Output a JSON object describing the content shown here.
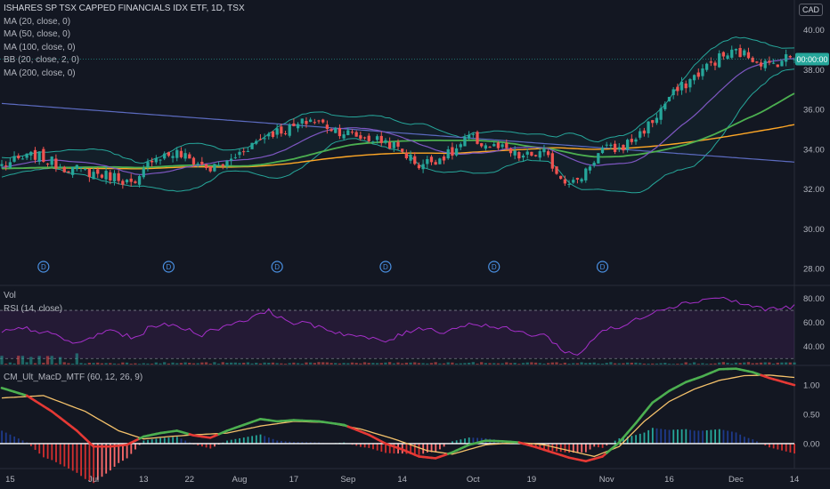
{
  "title": "ISHARES SP TSX CAPPED FINANCIALS IDX ETF, 1D, TSX",
  "currency": "CAD",
  "indicators": [
    "MA (20, close, 0)",
    "MA (50, close, 0)",
    "MA (100, close, 0)",
    "BB (20, close, 2, 0)",
    "MA (200, close, 0)"
  ],
  "vol_label": "Vol",
  "rsi_label": "RSI (14, close)",
  "macd_label": "CM_Ult_MacD_MTF (60, 12, 26, 9)",
  "last_price_label": "00:00:00",
  "dividend_marker": "D",
  "colors": {
    "background": "#131722",
    "up": "#26a69a",
    "down": "#ef5350",
    "ma20": "#7e57c2",
    "ma50": "#4caf50",
    "ma100": "#ffa726",
    "bb": "#26a69a",
    "ma200": "#5c6bc0",
    "rsi": "#a52fc9",
    "macd_up": "#4caf50",
    "macd_down": "#e53935",
    "signal": "#f5c26b"
  },
  "chart_data": [
    {
      "type": "candlestick",
      "x_tick_labels": [
        "15",
        "Jul",
        "13",
        "22",
        "Aug",
        "17",
        "Sep",
        "14",
        "Oct",
        "19",
        "Nov",
        "16",
        "Dec",
        "14"
      ],
      "y_ticks": [
        28,
        30,
        32,
        34,
        36,
        38,
        40
      ],
      "ylim": [
        27.2,
        41.5
      ],
      "close_path": [
        [
          0,
          33.2
        ],
        [
          8,
          33.7
        ],
        [
          15,
          33.1
        ],
        [
          22,
          32.8
        ],
        [
          28,
          32.6
        ],
        [
          32,
          32.1
        ],
        [
          36,
          33.6
        ],
        [
          42,
          33.8
        ],
        [
          50,
          33.0
        ],
        [
          54,
          33.3
        ],
        [
          58,
          34.0
        ],
        [
          64,
          34.8
        ],
        [
          70,
          35.1
        ],
        [
          74,
          35.5
        ],
        [
          80,
          35.0
        ],
        [
          86,
          34.6
        ],
        [
          92,
          34.4
        ],
        [
          96,
          33.9
        ],
        [
          100,
          33.2
        ],
        [
          108,
          33.8
        ],
        [
          112,
          34.6
        ],
        [
          116,
          34.2
        ],
        [
          120,
          34.0
        ],
        [
          124,
          33.6
        ],
        [
          130,
          33.8
        ],
        [
          134,
          32.6
        ],
        [
          138,
          32.3
        ],
        [
          140,
          33.0
        ],
        [
          144,
          34.0
        ],
        [
          148,
          34.0
        ],
        [
          152,
          34.6
        ],
        [
          156,
          35.4
        ],
        [
          160,
          36.6
        ],
        [
          164,
          37.3
        ],
        [
          168,
          38.0
        ],
        [
          172,
          38.6
        ],
        [
          176,
          38.9
        ],
        [
          180,
          38.6
        ],
        [
          184,
          38.2
        ],
        [
          188,
          38.6
        ],
        [
          190,
          38.7
        ]
      ],
      "dividend_days": [
        10,
        40,
        66,
        92,
        118,
        144
      ]
    },
    {
      "type": "line",
      "name": "RSI (14, close)",
      "y_ticks": [
        40,
        60,
        80
      ],
      "ylim": [
        25,
        90
      ],
      "bands": [
        30,
        70
      ],
      "values": [
        [
          0,
          52
        ],
        [
          6,
          55
        ],
        [
          12,
          50
        ],
        [
          18,
          42
        ],
        [
          22,
          48
        ],
        [
          26,
          54
        ],
        [
          32,
          46
        ],
        [
          36,
          58
        ],
        [
          42,
          57
        ],
        [
          48,
          50
        ],
        [
          54,
          58
        ],
        [
          58,
          62
        ],
        [
          62,
          66
        ],
        [
          64,
          72
        ],
        [
          66,
          64
        ],
        [
          70,
          60
        ],
        [
          76,
          57
        ],
        [
          80,
          52
        ],
        [
          86,
          48
        ],
        [
          92,
          44
        ],
        [
          96,
          50
        ],
        [
          100,
          56
        ],
        [
          106,
          52
        ],
        [
          110,
          57
        ],
        [
          114,
          59
        ],
        [
          118,
          56
        ],
        [
          122,
          54
        ],
        [
          126,
          50
        ],
        [
          130,
          50
        ],
        [
          134,
          38
        ],
        [
          138,
          32
        ],
        [
          140,
          40
        ],
        [
          144,
          54
        ],
        [
          148,
          55
        ],
        [
          152,
          62
        ],
        [
          156,
          69
        ],
        [
          160,
          73
        ],
        [
          164,
          76
        ],
        [
          168,
          79
        ],
        [
          172,
          81
        ],
        [
          176,
          77
        ],
        [
          180,
          73
        ],
        [
          184,
          71
        ],
        [
          188,
          72
        ],
        [
          190,
          73
        ]
      ]
    },
    {
      "type": "line",
      "name": "CM_Ult_MacD_MTF",
      "y_ticks": [
        0.0,
        0.5,
        1.0
      ],
      "ylim": [
        -0.35,
        1.32
      ],
      "macd": [
        [
          0,
          0.95
        ],
        [
          6,
          0.82
        ],
        [
          12,
          0.55
        ],
        [
          18,
          0.22
        ],
        [
          22,
          -0.05
        ],
        [
          26,
          -0.05
        ],
        [
          30,
          -0.02
        ],
        [
          34,
          0.12
        ],
        [
          38,
          0.18
        ],
        [
          42,
          0.22
        ],
        [
          46,
          0.14
        ],
        [
          50,
          0.1
        ],
        [
          54,
          0.22
        ],
        [
          58,
          0.32
        ],
        [
          62,
          0.42
        ],
        [
          66,
          0.38
        ],
        [
          70,
          0.4
        ],
        [
          76,
          0.38
        ],
        [
          82,
          0.32
        ],
        [
          88,
          0.15
        ],
        [
          92,
          0.0
        ],
        [
          96,
          -0.1
        ],
        [
          100,
          -0.22
        ],
        [
          104,
          -0.25
        ],
        [
          108,
          -0.15
        ],
        [
          112,
          -0.02
        ],
        [
          116,
          0.05
        ],
        [
          120,
          0.04
        ],
        [
          124,
          0.02
        ],
        [
          128,
          -0.06
        ],
        [
          132,
          -0.15
        ],
        [
          136,
          -0.24
        ],
        [
          140,
          -0.3
        ],
        [
          144,
          -0.22
        ],
        [
          148,
          0.02
        ],
        [
          152,
          0.35
        ],
        [
          156,
          0.7
        ],
        [
          160,
          0.9
        ],
        [
          164,
          1.05
        ],
        [
          168,
          1.15
        ],
        [
          172,
          1.27
        ],
        [
          176,
          1.28
        ],
        [
          180,
          1.22
        ],
        [
          184,
          1.12
        ],
        [
          188,
          1.04
        ],
        [
          190,
          1.0
        ]
      ],
      "signal": [
        [
          0,
          0.78
        ],
        [
          10,
          0.82
        ],
        [
          20,
          0.55
        ],
        [
          28,
          0.22
        ],
        [
          34,
          0.08
        ],
        [
          40,
          0.12
        ],
        [
          46,
          0.15
        ],
        [
          54,
          0.18
        ],
        [
          62,
          0.3
        ],
        [
          70,
          0.38
        ],
        [
          78,
          0.36
        ],
        [
          86,
          0.25
        ],
        [
          94,
          0.08
        ],
        [
          102,
          -0.12
        ],
        [
          108,
          -0.18
        ],
        [
          116,
          -0.02
        ],
        [
          124,
          0.02
        ],
        [
          130,
          -0.02
        ],
        [
          136,
          -0.12
        ],
        [
          142,
          -0.22
        ],
        [
          148,
          -0.05
        ],
        [
          154,
          0.38
        ],
        [
          160,
          0.72
        ],
        [
          166,
          0.93
        ],
        [
          172,
          1.08
        ],
        [
          178,
          1.16
        ],
        [
          184,
          1.17
        ],
        [
          190,
          1.13
        ]
      ]
    }
  ]
}
